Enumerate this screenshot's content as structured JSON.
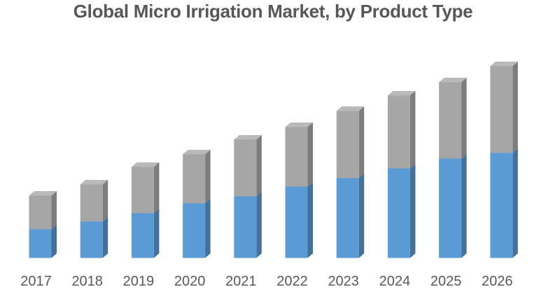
{
  "page": {
    "background_color": "#FFFFFF"
  },
  "chart_data": {
    "type": "bar",
    "style": "3d-stacked-column",
    "stacked": true,
    "title": "Global Micro Irrigation Market, by Product Type",
    "title_color": "#575757",
    "categories": [
      "2017",
      "2018",
      "2019",
      "2020",
      "2021",
      "2022",
      "2023",
      "2024",
      "2025",
      "2026"
    ],
    "series": [
      {
        "name": "blue-segment (bottom)",
        "color": "#5B9BD5",
        "side_color": "#41719C",
        "values": [
          41,
          52,
          64,
          78,
          88,
          102,
          114,
          128,
          142,
          150
        ]
      },
      {
        "name": "gray-segment (top)",
        "color": "#A6A6A6",
        "side_color": "#7D7D7D",
        "top_color": "#B9B9B9",
        "values": [
          48,
          53,
          66,
          70,
          81,
          85,
          96,
          104,
          109,
          124
        ]
      }
    ],
    "totals": [
      89,
      105,
      130,
      148,
      169,
      187,
      210,
      232,
      251,
      274
    ],
    "units": "relative units (no value axis shown in image)",
    "value_axis_visible": false,
    "gridlines_visible": false,
    "legend_position": "none",
    "xlabel": "",
    "ylabel": "",
    "ylim": [
      0,
      300
    ],
    "tick_label_color": "#595959"
  }
}
